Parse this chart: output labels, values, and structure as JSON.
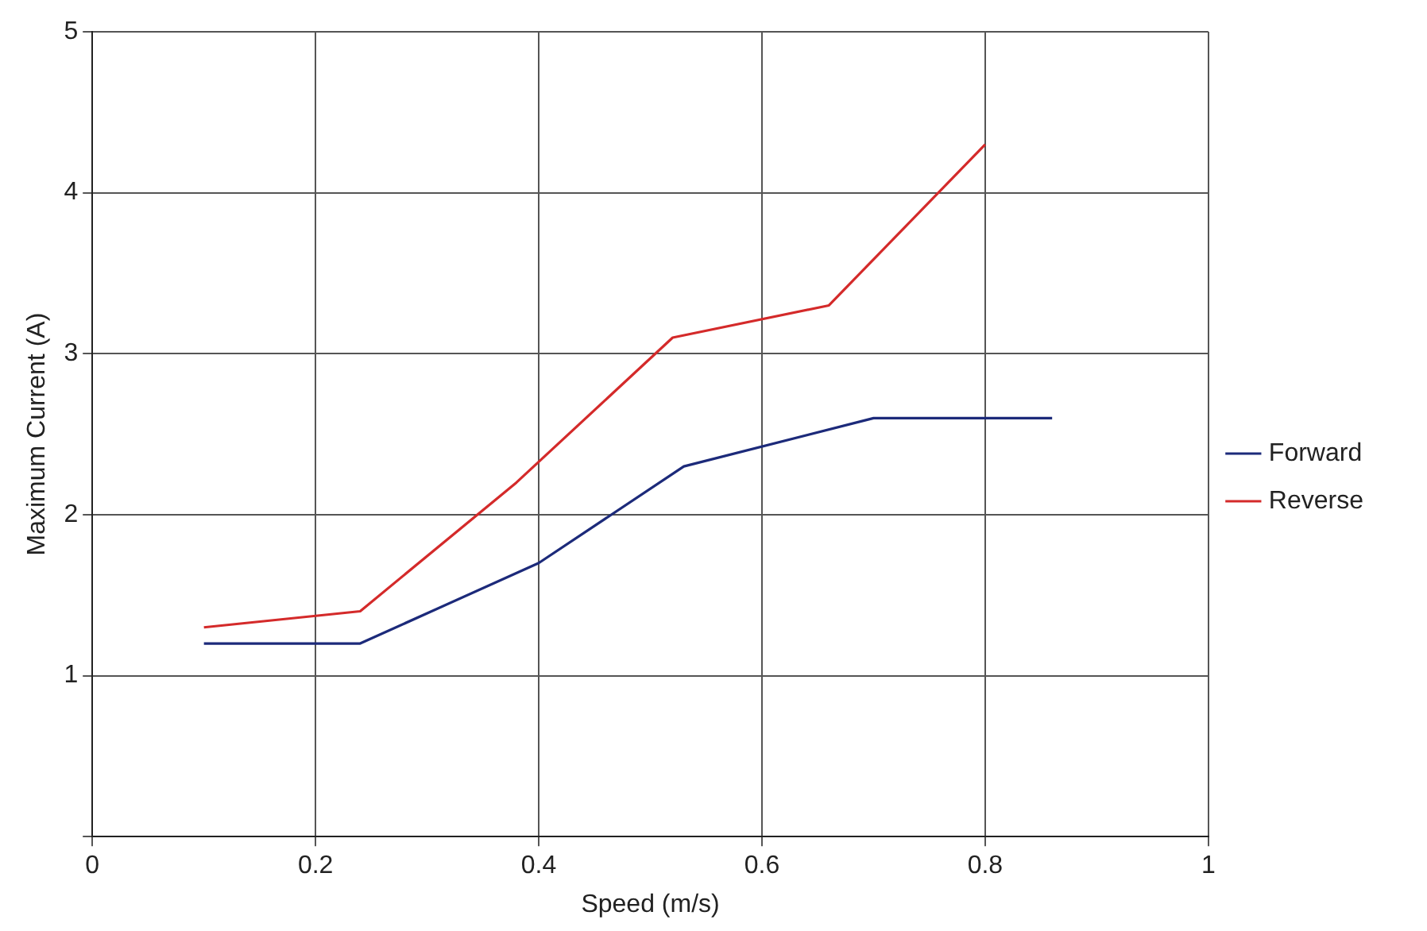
{
  "chart_data": {
    "type": "line",
    "xlabel": "Speed (m/s)",
    "ylabel": "Maximum Current (A)",
    "xlim": [
      0,
      1
    ],
    "xticks": [
      0,
      0.2,
      0.4,
      0.6,
      0.8,
      1
    ],
    "ylim": [
      0,
      5
    ],
    "yticks": [
      {
        "value": 0,
        "label": null
      },
      1,
      2,
      3,
      4,
      5
    ],
    "grid": true,
    "legend": "right",
    "marker": "none",
    "line_style": "solid",
    "series": [
      {
        "name": "Forward",
        "color": "#1c2a7a",
        "x": [
          0.1,
          0.24,
          0.4,
          0.53,
          0.7,
          0.86
        ],
        "values": [
          1.2,
          1.2,
          1.7,
          2.3,
          2.6,
          2.6
        ]
      },
      {
        "name": "Reverse",
        "color": "#d42a2a",
        "x": [
          0.1,
          0.24,
          0.38,
          0.52,
          0.66,
          0.8
        ],
        "values": [
          1.3,
          1.4,
          2.2,
          3.1,
          3.3,
          4.3
        ]
      }
    ]
  }
}
